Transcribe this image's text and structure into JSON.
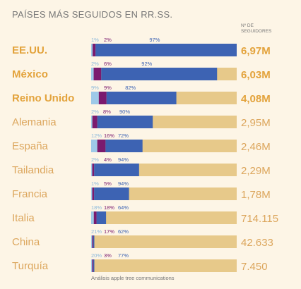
{
  "chart_data": {
    "type": "bar",
    "title": "PAÍSES MÁS SEGUIDOS EN RR.SS.",
    "followers_header": [
      "Nº DE",
      "SEGUIDORES"
    ],
    "source": "Análisis apple tree communications",
    "series": [
      {
        "key": "light",
        "color": "#9ec9e8"
      },
      {
        "key": "purple",
        "color": "#7b1a6e"
      },
      {
        "key": "blue",
        "color": "#3d63b3"
      }
    ],
    "track_color": "#e7c98a",
    "max_followers": 6970000,
    "rows": [
      {
        "country": "EE.UU.",
        "followers": "6,97M",
        "followers_value": 6970000,
        "highlight": true,
        "pct": [
          "1%",
          "2%",
          "97%"
        ],
        "shares": [
          1,
          2,
          97
        ]
      },
      {
        "country": "México",
        "followers": "6,03M",
        "followers_value": 6030000,
        "highlight": true,
        "pct": [
          "2%",
          "6%",
          "92%"
        ],
        "shares": [
          2,
          6,
          92
        ]
      },
      {
        "country": "Reino Unido",
        "followers": "4,08M",
        "followers_value": 4080000,
        "highlight": true,
        "pct": [
          "9%",
          "9%",
          "82%"
        ],
        "shares": [
          9,
          9,
          82
        ]
      },
      {
        "country": "Alemania",
        "followers": "2,95M",
        "followers_value": 2950000,
        "highlight": false,
        "pct": [
          "2%",
          "8%",
          "90%"
        ],
        "shares": [
          2,
          8,
          90
        ]
      },
      {
        "country": "España",
        "followers": "2,46M",
        "followers_value": 2460000,
        "highlight": false,
        "pct": [
          "12%",
          "16%",
          "72%"
        ],
        "shares": [
          12,
          16,
          72
        ]
      },
      {
        "country": "Tailandia",
        "followers": "2,29M",
        "followers_value": 2290000,
        "highlight": false,
        "pct": [
          "2%",
          "4%",
          "94%"
        ],
        "shares": [
          2,
          4,
          94
        ]
      },
      {
        "country": "Francia",
        "followers": "1,78M",
        "followers_value": 1780000,
        "highlight": false,
        "pct": [
          "1%",
          "5%",
          "94%"
        ],
        "shares": [
          1,
          5,
          94
        ]
      },
      {
        "country": "Italia",
        "followers": "714.115",
        "followers_value": 714115,
        "highlight": false,
        "pct": [
          "18%",
          "18%",
          "64%"
        ],
        "shares": [
          18,
          18,
          64
        ]
      },
      {
        "country": "China",
        "followers": "42.633",
        "followers_value": 42633,
        "highlight": false,
        "pct": [
          "21%",
          "17%",
          "62%"
        ],
        "shares": [
          21,
          17,
          62
        ]
      },
      {
        "country": "Turquía",
        "followers": "7.450",
        "followers_value": 7450,
        "highlight": false,
        "pct": [
          "20%",
          "3%",
          "77%"
        ],
        "shares": [
          20,
          3,
          77
        ]
      }
    ]
  }
}
